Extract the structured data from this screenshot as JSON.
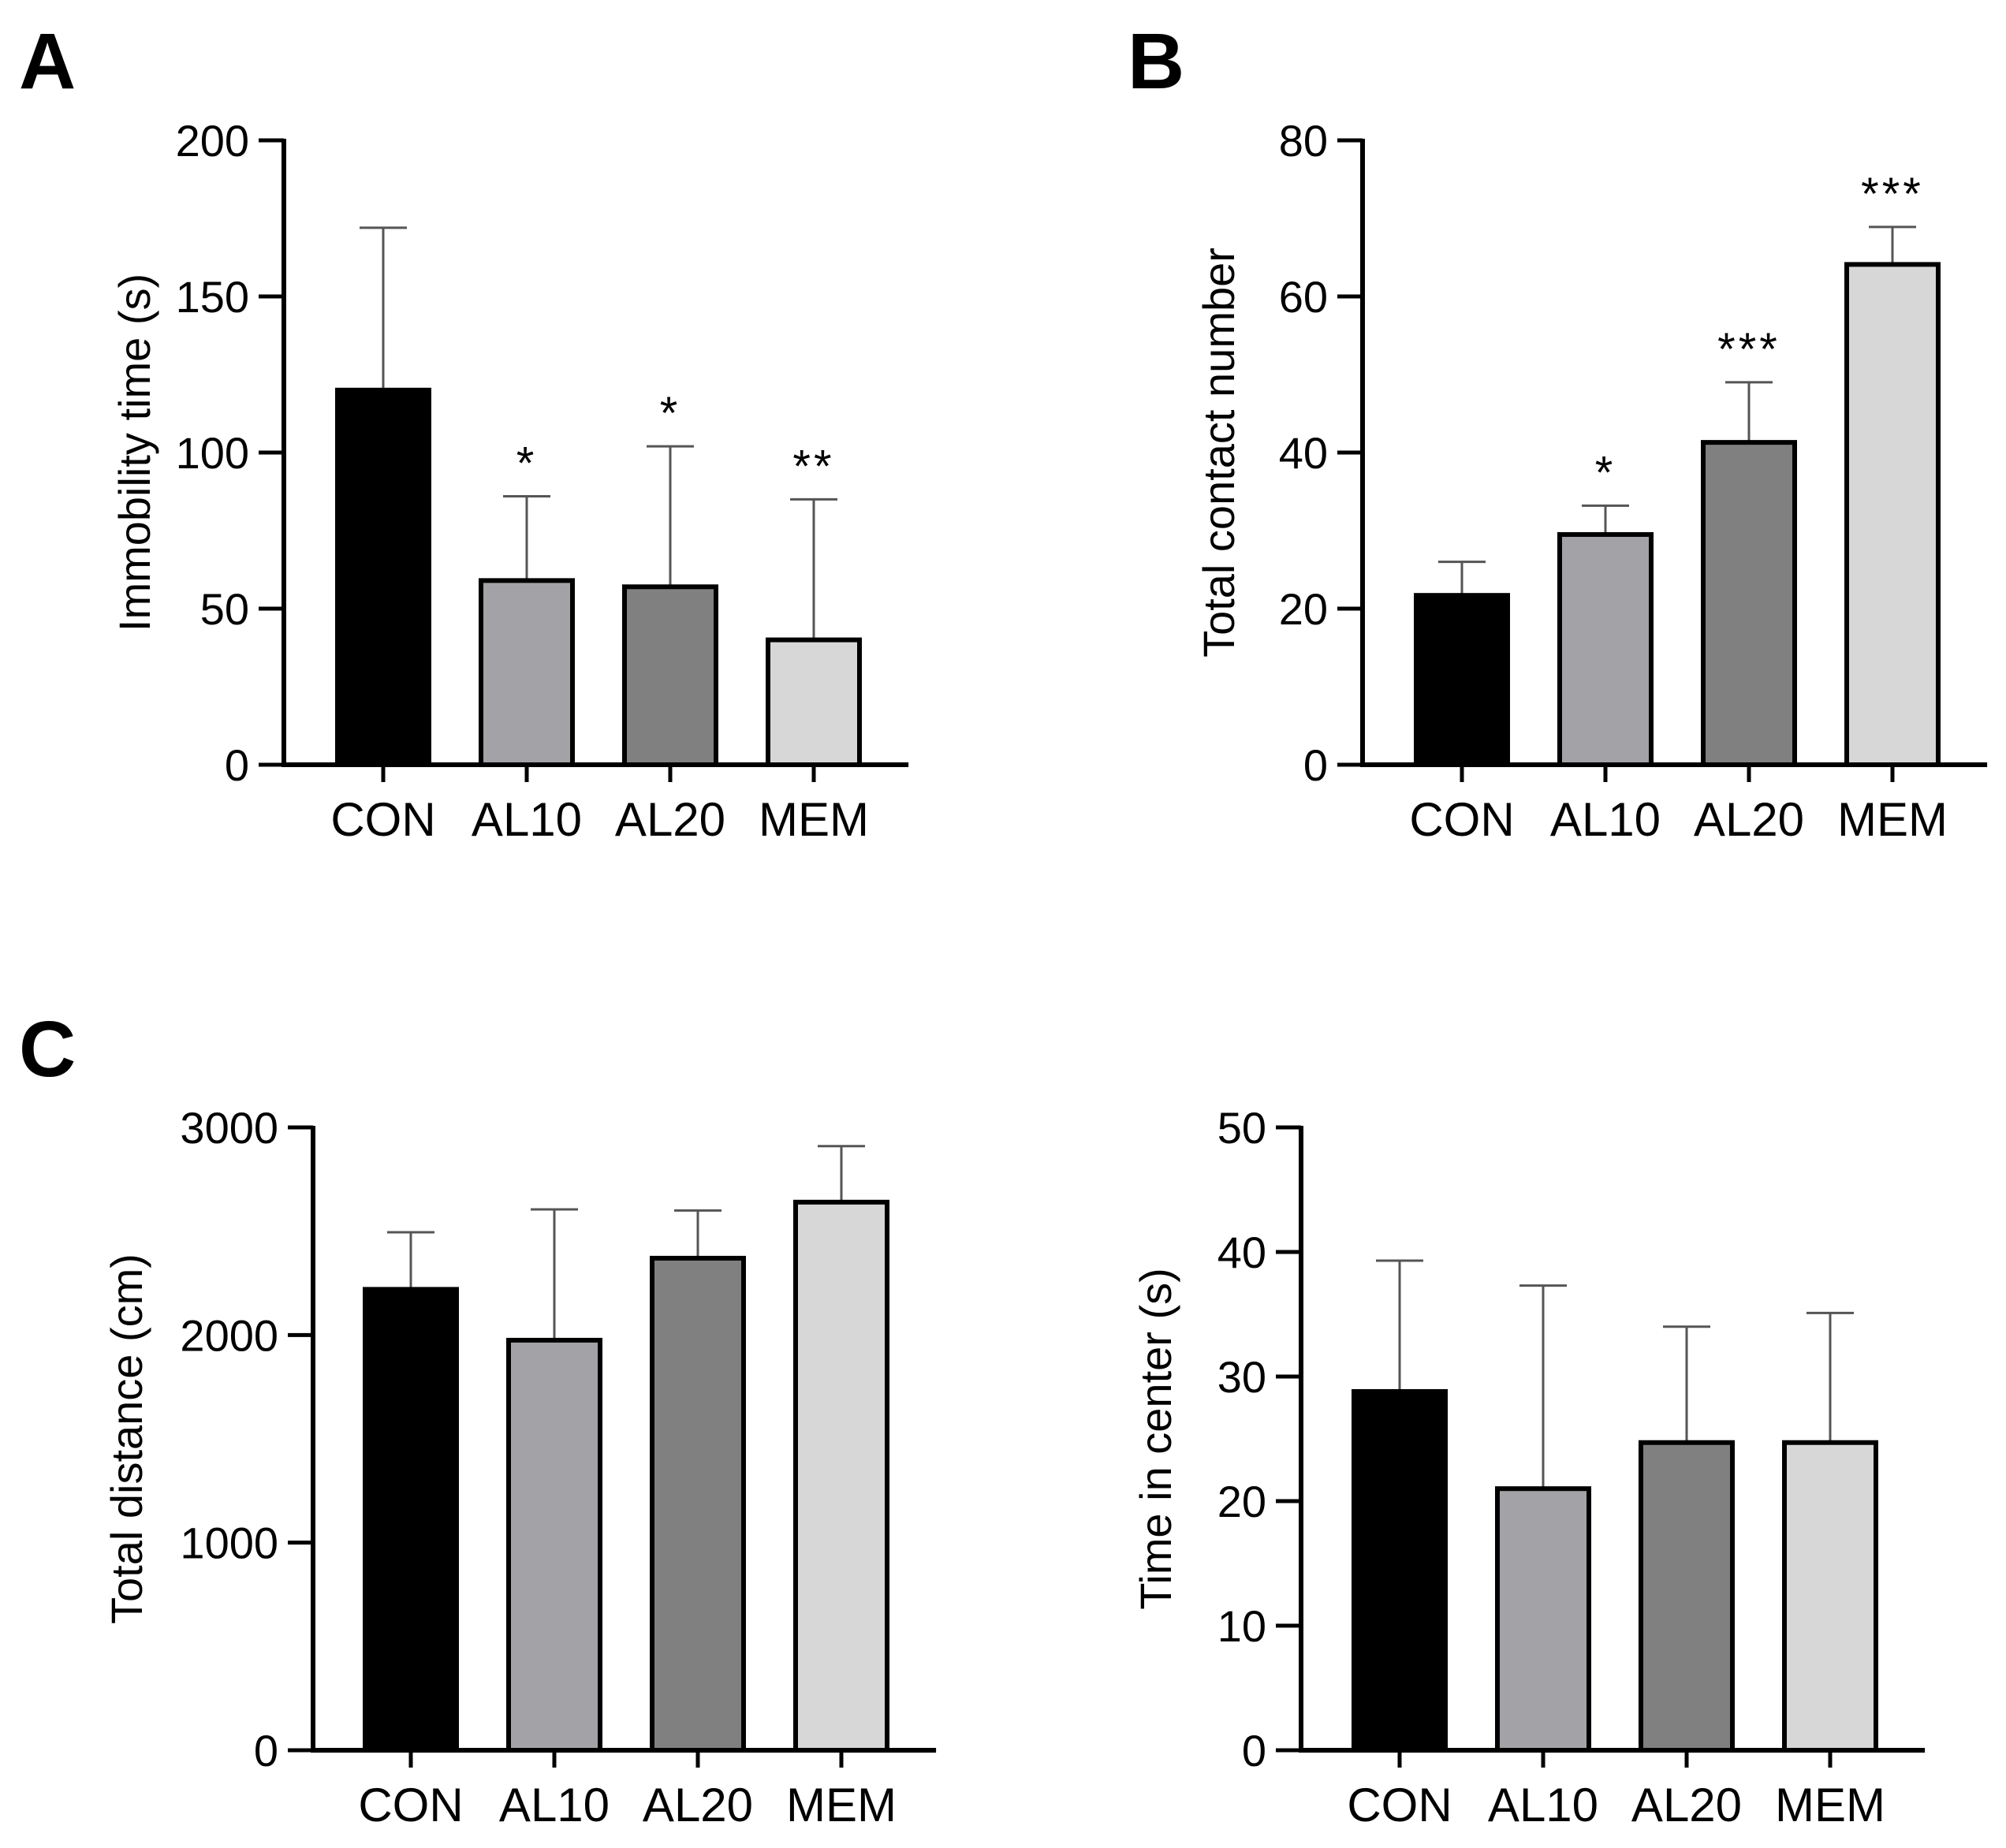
{
  "figure": {
    "panel_labels": [
      "A",
      "B",
      "C"
    ]
  },
  "colors": {
    "CON": "#000000",
    "AL10": "#a3a2a7",
    "AL20": "#808080",
    "MEM": "#d7d7d7",
    "stroke": "#000000"
  },
  "chart_data": [
    {
      "id": "A",
      "type": "bar",
      "panel_label": "A",
      "categories": [
        "CON",
        "AL10",
        "AL20",
        "MEM"
      ],
      "values": [
        120,
        59,
        57,
        40
      ],
      "error_upper": [
        172,
        86,
        102,
        85
      ],
      "significance": [
        "",
        "*",
        "*",
        "**"
      ],
      "ylabel": "Immobility time (s)",
      "ylim": [
        0,
        200
      ],
      "yticks": [
        0,
        50,
        100,
        150,
        200
      ]
    },
    {
      "id": "B",
      "type": "bar",
      "panel_label": "B",
      "categories": [
        "CON",
        "AL10",
        "AL20",
        "MEM"
      ],
      "values": [
        21.7,
        29.5,
        41.3,
        64.1
      ],
      "error_upper": [
        26,
        33.2,
        49,
        68.9
      ],
      "significance": [
        "",
        "*",
        "***",
        "***"
      ],
      "ylabel": "Total contact number",
      "ylim": [
        0,
        80
      ],
      "yticks": [
        0,
        20,
        40,
        60,
        80
      ]
    },
    {
      "id": "C1",
      "type": "bar",
      "panel_label": "C",
      "categories": [
        "CON",
        "AL10",
        "AL20",
        "MEM"
      ],
      "values": [
        2220,
        1975,
        2370,
        2640
      ],
      "error_upper": [
        2495,
        2605,
        2600,
        2910
      ],
      "significance": [
        "",
        "",
        "",
        ""
      ],
      "ylabel": "Total distance (cm)",
      "ylim": [
        0,
        3000
      ],
      "yticks": [
        0,
        1000,
        2000,
        3000
      ]
    },
    {
      "id": "C2",
      "type": "bar",
      "panel_label": "",
      "categories": [
        "CON",
        "AL10",
        "AL20",
        "MEM"
      ],
      "values": [
        28.8,
        21,
        24.7,
        24.7
      ],
      "error_upper": [
        39.3,
        37.3,
        34,
        35.1
      ],
      "significance": [
        "",
        "",
        "",
        ""
      ],
      "ylabel": "Time in center (s)",
      "ylim": [
        0,
        50
      ],
      "yticks": [
        0,
        10,
        20,
        30,
        40,
        50
      ]
    }
  ]
}
